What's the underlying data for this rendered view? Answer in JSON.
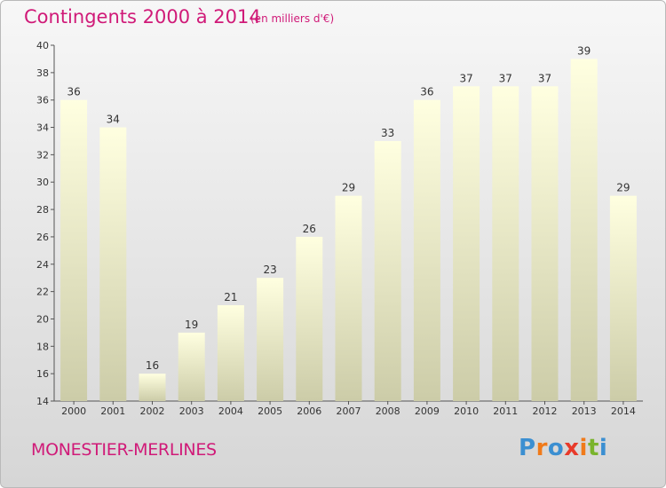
{
  "header": {
    "title": "Contingents 2000 à 2014",
    "subtitle": "(en milliers d'€)"
  },
  "footer": {
    "commune": "MONESTIER-MERLINES",
    "logo_text": "Proxiti",
    "logo_colors": [
      "#3b8fd1",
      "#f07a1a",
      "#3b8fd1",
      "#e83a2a",
      "#f07a1a",
      "#7ab42d",
      "#3b8fd1"
    ]
  },
  "chart_data": {
    "type": "bar",
    "categories": [
      "2000",
      "2001",
      "2002",
      "2003",
      "2004",
      "2005",
      "2006",
      "2007",
      "2008",
      "2009",
      "2010",
      "2011",
      "2012",
      "2013",
      "2014"
    ],
    "values": [
      36,
      34,
      16,
      19,
      21,
      23,
      26,
      29,
      33,
      36,
      37,
      37,
      37,
      39,
      29
    ],
    "ylim": [
      14,
      40
    ],
    "yticks": [
      14,
      16,
      18,
      20,
      22,
      24,
      26,
      28,
      30,
      32,
      34,
      36,
      38,
      40
    ],
    "grid": false,
    "bar_color_top": "#ffffe0",
    "bar_color_bottom": "#cccca8"
  }
}
